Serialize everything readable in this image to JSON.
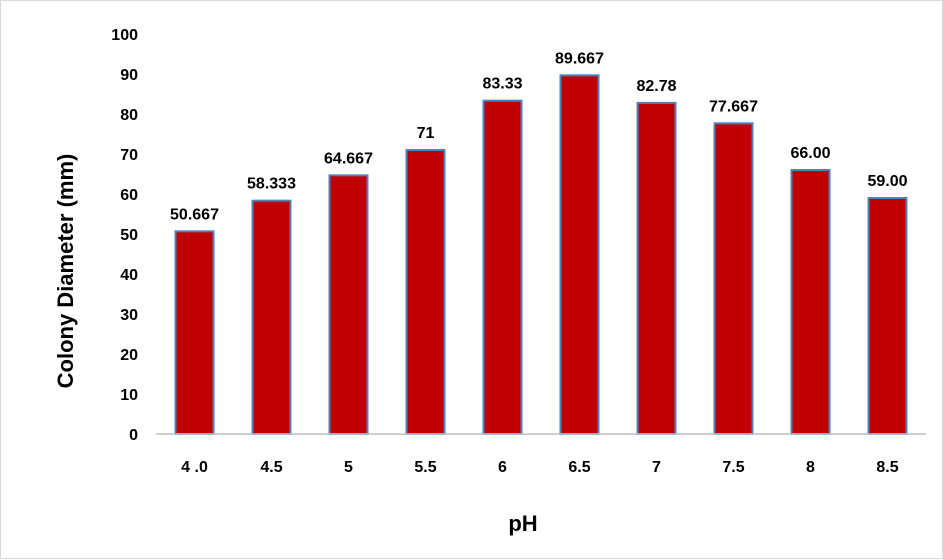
{
  "chart_data": {
    "type": "bar",
    "title": "",
    "xlabel": "pH",
    "ylabel": "Colony Diameter (mm)",
    "categories": [
      "4 .0",
      "4.5",
      "5",
      "5.5",
      "6",
      "6.5",
      "7",
      "7.5",
      "8",
      "8.5"
    ],
    "values": [
      50.667,
      58.333,
      64.667,
      71,
      83.33,
      89.667,
      82.78,
      77.667,
      66.0,
      59.0
    ],
    "data_labels": [
      "50.667",
      "58.333",
      "64.667",
      "71",
      "83.33",
      "89.667",
      "82.78",
      "77.667",
      "66.00",
      "59.00"
    ],
    "ylim": [
      0,
      100
    ],
    "yticks": [
      0,
      10,
      20,
      30,
      40,
      50,
      60,
      70,
      80,
      90,
      100
    ],
    "grid": false,
    "legend": "none",
    "bar_color": "#c00000",
    "bar_edge_color": "#4f81bd"
  }
}
